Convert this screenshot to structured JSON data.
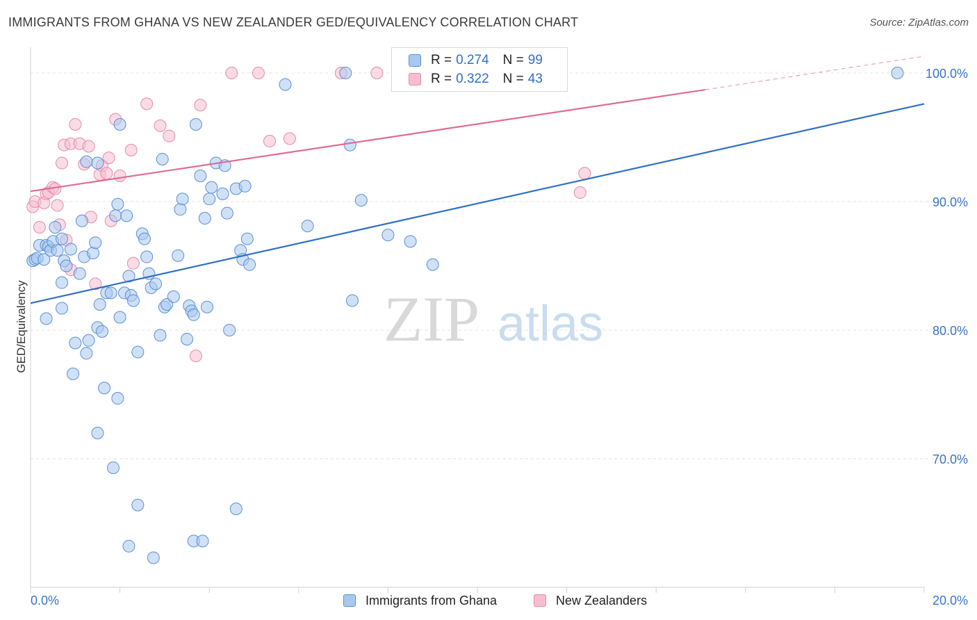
{
  "title": "IMMIGRANTS FROM GHANA VS NEW ZEALANDER GED/EQUIVALENCY CORRELATION CHART",
  "source": "Source: ZipAtlas.com",
  "watermark": {
    "zip": "ZIP",
    "atlas": "atlas"
  },
  "legend": {
    "r_label": "R =",
    "n_label": "N =",
    "series": [
      {
        "name": "Immigrants from Ghana",
        "r": "0.274",
        "n": "99",
        "color": "#a9c8ef",
        "stroke": "#5a8fd6",
        "line": "#2f6fc6"
      },
      {
        "name": "New Zealanders",
        "r": "0.322",
        "n": "43",
        "color": "#f7bed0",
        "stroke": "#e48aa8",
        "line": "#e06b93"
      }
    ]
  },
  "chart_data": {
    "type": "scatter",
    "title": "IMMIGRANTS FROM GHANA VS NEW ZEALANDER GED/EQUIVALENCY CORRELATION CHART",
    "xlabel": "",
    "ylabel": "GED/Equivalency",
    "xlim": [
      0,
      20
    ],
    "ylim": [
      60,
      102
    ],
    "x_tick_labels": [
      "0.0%",
      "20.0%"
    ],
    "y_ticks": [
      70,
      80,
      90,
      100
    ],
    "y_tick_labels": [
      "70.0%",
      "80.0%",
      "90.0%",
      "100.0%"
    ],
    "grid": true,
    "series": [
      {
        "name": "Immigrants from Ghana",
        "trend": {
          "x0": 0,
          "y0": 82.1,
          "x1": 20,
          "y1": 97.6
        },
        "points": [
          [
            0.05,
            85.4
          ],
          [
            0.1,
            85.5
          ],
          [
            0.15,
            85.6
          ],
          [
            0.2,
            86.6
          ],
          [
            0.3,
            85.5
          ],
          [
            0.35,
            86.6
          ],
          [
            0.4,
            86.5
          ],
          [
            0.45,
            86.2
          ],
          [
            0.5,
            86.9
          ],
          [
            0.55,
            88.0
          ],
          [
            0.6,
            86.2
          ],
          [
            0.7,
            87.1
          ],
          [
            0.75,
            85.4
          ],
          [
            0.8,
            85.0
          ],
          [
            0.9,
            86.3
          ],
          [
            1.1,
            84.4
          ],
          [
            1.15,
            88.5
          ],
          [
            1.2,
            85.7
          ],
          [
            1.4,
            86.0
          ],
          [
            1.45,
            86.8
          ],
          [
            0.7,
            83.7
          ],
          [
            0.7,
            81.7
          ],
          [
            0.35,
            80.9
          ],
          [
            1.0,
            79.0
          ],
          [
            1.25,
            78.2
          ],
          [
            1.3,
            79.2
          ],
          [
            1.5,
            80.2
          ],
          [
            1.55,
            82.0
          ],
          [
            1.6,
            79.9
          ],
          [
            1.7,
            82.9
          ],
          [
            1.8,
            82.9
          ],
          [
            1.9,
            88.9
          ],
          [
            1.95,
            89.8
          ],
          [
            2.0,
            81.0
          ],
          [
            2.1,
            82.9
          ],
          [
            2.15,
            88.9
          ],
          [
            2.2,
            84.2
          ],
          [
            2.25,
            82.7
          ],
          [
            2.3,
            82.3
          ],
          [
            2.4,
            78.3
          ],
          [
            2.5,
            87.5
          ],
          [
            2.55,
            87.1
          ],
          [
            2.6,
            85.7
          ],
          [
            2.65,
            84.4
          ],
          [
            2.7,
            83.3
          ],
          [
            2.8,
            83.6
          ],
          [
            2.9,
            79.6
          ],
          [
            2.95,
            93.3
          ],
          [
            3.0,
            81.8
          ],
          [
            3.05,
            82.0
          ],
          [
            3.2,
            82.6
          ],
          [
            3.3,
            85.8
          ],
          [
            3.35,
            89.4
          ],
          [
            3.4,
            90.2
          ],
          [
            3.5,
            79.3
          ],
          [
            3.55,
            81.9
          ],
          [
            3.6,
            81.5
          ],
          [
            3.65,
            81.2
          ],
          [
            3.8,
            92.0
          ],
          [
            3.9,
            88.7
          ],
          [
            3.95,
            81.8
          ],
          [
            4.0,
            90.2
          ],
          [
            4.05,
            91.1
          ],
          [
            4.15,
            93.0
          ],
          [
            4.3,
            90.6
          ],
          [
            4.35,
            92.8
          ],
          [
            4.4,
            89.1
          ],
          [
            4.45,
            80.0
          ],
          [
            4.6,
            91.0
          ],
          [
            4.7,
            86.2
          ],
          [
            4.75,
            85.5
          ],
          [
            4.8,
            91.2
          ],
          [
            4.85,
            87.1
          ],
          [
            4.9,
            85.1
          ],
          [
            0.95,
            76.6
          ],
          [
            1.65,
            75.5
          ],
          [
            1.95,
            74.7
          ],
          [
            1.5,
            72.0
          ],
          [
            1.85,
            69.3
          ],
          [
            2.4,
            66.4
          ],
          [
            2.2,
            63.2
          ],
          [
            2.75,
            62.3
          ],
          [
            3.65,
            63.6
          ],
          [
            3.85,
            63.6
          ],
          [
            4.6,
            66.1
          ],
          [
            1.25,
            93.1
          ],
          [
            1.5,
            93.0
          ],
          [
            2.0,
            96.0
          ],
          [
            3.7,
            96.0
          ],
          [
            5.7,
            99.1
          ],
          [
            7.05,
            100.0
          ],
          [
            7.15,
            94.4
          ],
          [
            6.2,
            88.1
          ],
          [
            7.4,
            90.1
          ],
          [
            8.0,
            87.4
          ],
          [
            8.5,
            86.9
          ],
          [
            9.0,
            85.1
          ],
          [
            7.2,
            82.3
          ],
          [
            19.4,
            100.0
          ]
        ]
      },
      {
        "name": "New Zealanders",
        "trend": {
          "x0": 0,
          "y0": 90.8,
          "x1": 15.1,
          "y1": 98.7,
          "dash_to_x": 20,
          "dash_to_y": 101.3
        },
        "points": [
          [
            0.05,
            89.6
          ],
          [
            0.1,
            90.0
          ],
          [
            0.2,
            88.0
          ],
          [
            0.3,
            89.9
          ],
          [
            0.35,
            90.6
          ],
          [
            0.4,
            90.7
          ],
          [
            0.5,
            91.1
          ],
          [
            0.55,
            91.0
          ],
          [
            0.6,
            89.7
          ],
          [
            0.65,
            88.2
          ],
          [
            0.7,
            93.0
          ],
          [
            0.75,
            94.4
          ],
          [
            0.9,
            94.5
          ],
          [
            1.0,
            96.0
          ],
          [
            1.1,
            94.5
          ],
          [
            1.2,
            92.9
          ],
          [
            1.3,
            94.3
          ],
          [
            1.35,
            88.8
          ],
          [
            1.45,
            83.6
          ],
          [
            1.55,
            92.1
          ],
          [
            1.6,
            92.8
          ],
          [
            1.7,
            92.2
          ],
          [
            1.75,
            93.4
          ],
          [
            1.8,
            88.5
          ],
          [
            1.9,
            96.4
          ],
          [
            2.0,
            92.0
          ],
          [
            2.25,
            94.0
          ],
          [
            2.3,
            85.2
          ],
          [
            2.6,
            97.6
          ],
          [
            2.9,
            95.9
          ],
          [
            3.1,
            95.1
          ],
          [
            3.8,
            97.5
          ],
          [
            3.7,
            78.0
          ],
          [
            4.5,
            100.0
          ],
          [
            5.1,
            100.0
          ],
          [
            5.35,
            94.7
          ],
          [
            5.8,
            94.9
          ],
          [
            6.95,
            100.0
          ],
          [
            7.75,
            100.0
          ],
          [
            12.4,
            92.2
          ],
          [
            12.3,
            90.7
          ],
          [
            0.9,
            84.7
          ],
          [
            0.8,
            87.0
          ]
        ]
      }
    ]
  }
}
